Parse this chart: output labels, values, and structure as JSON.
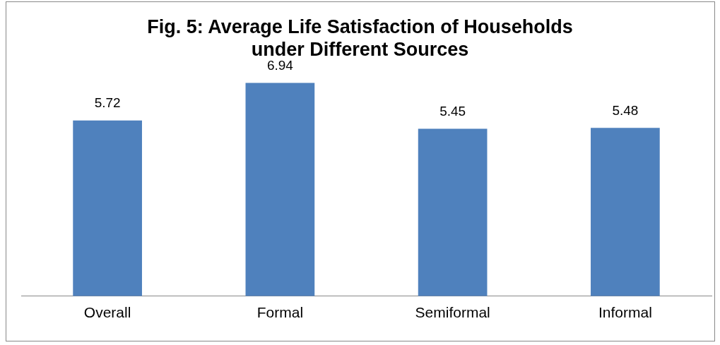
{
  "chart_data": {
    "type": "bar",
    "title": "Fig. 5: Average Life Satisfaction of Households under Different Sources",
    "categories": [
      "Overall",
      "Formal",
      "Semiformal",
      "Informal"
    ],
    "values": [
      5.72,
      6.94,
      5.45,
      5.48
    ],
    "color": "#4f81bd",
    "data_labels": true,
    "grid": false,
    "legend": false
  }
}
